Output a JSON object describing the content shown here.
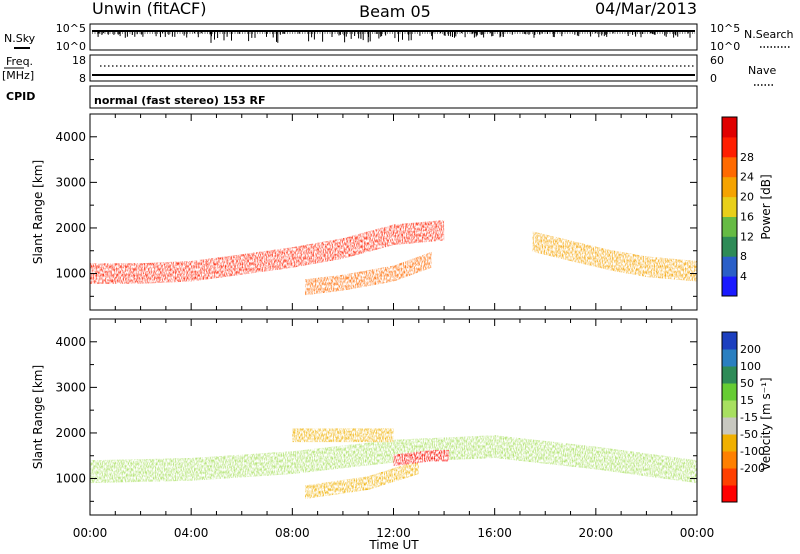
{
  "header": {
    "station": "Unwin (fitACF)",
    "beam": "Beam 05",
    "date": "04/Mar/2013"
  },
  "top_panels": {
    "nsky_label": "N.Sky",
    "nsky_ticks": [
      "10^5",
      "10^0"
    ],
    "nsearch_label": "N.Search",
    "nsearch_ticks": [
      "10^5",
      "10^0"
    ],
    "freq_label": "Freq.",
    "freq_unit": "[MHz]",
    "freq_ticks": [
      "18",
      "8"
    ],
    "nave_label": "Nave",
    "nave_ticks": [
      "60",
      "0"
    ],
    "cpid_label": "CPID",
    "cpid_text": "normal (fast stereo) 153 RF"
  },
  "axes": {
    "ylabel": "Slant Range [km]",
    "xlabel": "Time UT",
    "yticks": [
      "1000",
      "2000",
      "3000",
      "4000"
    ],
    "xticks": [
      "00:00",
      "04:00",
      "08:00",
      "12:00",
      "16:00",
      "20:00",
      "00:00"
    ]
  },
  "colorbars": {
    "power": {
      "label": "Power [dB]",
      "ticks": [
        "4",
        "8",
        "12",
        "16",
        "20",
        "24",
        "28"
      ],
      "colors": [
        "#1a1aff",
        "#2a5fc8",
        "#2e8b57",
        "#66bb44",
        "#e8cf1a",
        "#f5a300",
        "#ff6a00",
        "#ff1e00",
        "#e00000"
      ]
    },
    "velocity": {
      "label": "Velocity [m s⁻¹]",
      "ticks": [
        "200",
        "100",
        "50",
        "15",
        "-15",
        "-50",
        "-100",
        "-200"
      ],
      "colors": [
        "#1c3fbf",
        "#2a7fc0",
        "#2e8b57",
        "#66cc33",
        "#a8e060",
        "#c8c8c0",
        "#f0b000",
        "#ff8000",
        "#ff4000",
        "#ff0000"
      ]
    }
  },
  "chart_data": [
    {
      "type": "heatmap",
      "title": "",
      "xlabel": "Time UT",
      "ylabel": "Slant Range [km]",
      "x_range_hours": [
        0,
        24
      ],
      "ylim": [
        200,
        4500
      ],
      "colorbar_label": "Power [dB]",
      "colorbar_range": [
        0,
        30
      ],
      "bands": [
        {
          "x": [
            0,
            2,
            4,
            6,
            8,
            9,
            10,
            11,
            12,
            13,
            14
          ],
          "y_center": [
            1000,
            1000,
            1050,
            1200,
            1350,
            1450,
            1550,
            1700,
            1850,
            1900,
            1950
          ],
          "width_km": 450,
          "power": 24
        },
        {
          "x": [
            8.5,
            10,
            12,
            13.5
          ],
          "y_center": [
            700,
            800,
            1000,
            1300
          ],
          "width_km": 350,
          "power": 20
        },
        {
          "x": [
            17.5,
            19,
            20.5,
            22,
            24
          ],
          "y_center": [
            1700,
            1500,
            1300,
            1150,
            1050
          ],
          "width_km": 450,
          "power": 18
        }
      ]
    },
    {
      "type": "heatmap",
      "title": "",
      "xlabel": "Time UT",
      "ylabel": "Slant Range [km]",
      "x_range_hours": [
        0,
        24
      ],
      "ylim": [
        200,
        4500
      ],
      "colorbar_label": "Velocity [m s⁻¹]",
      "colorbar_range": [
        -250,
        250
      ],
      "bands": [
        {
          "x": [
            0,
            4,
            8,
            12,
            16,
            20,
            24
          ],
          "y_center": [
            1150,
            1200,
            1350,
            1600,
            1700,
            1450,
            1150
          ],
          "width_km": 500,
          "velocity": 0
        },
        {
          "x": [
            8,
            10,
            12
          ],
          "y_center": [
            1950,
            1950,
            1950
          ],
          "width_km": 300,
          "velocity": -80
        },
        {
          "x": [
            8.5,
            11,
            13
          ],
          "y_center": [
            700,
            900,
            1250
          ],
          "width_km": 300,
          "velocity": -60
        },
        {
          "x": [
            12,
            13.5,
            14.2
          ],
          "y_center": [
            1400,
            1500,
            1500
          ],
          "width_km": 250,
          "velocity": -220
        }
      ]
    }
  ]
}
